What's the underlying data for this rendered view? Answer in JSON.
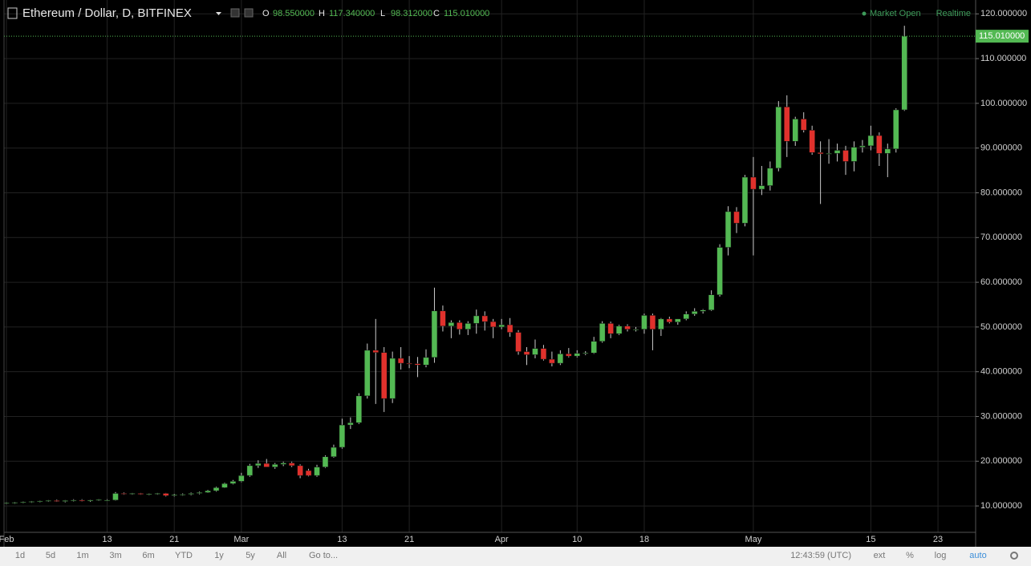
{
  "chart_data": {
    "type": "candlestick",
    "title": "Ethereum / Dollar, D, BITFINEX",
    "ohlc_header": [
      {
        "label": "O",
        "value": "98.550000"
      },
      {
        "label": "H",
        "value": "117.340000"
      },
      {
        "label": "L",
        "value": "98.312000"
      },
      {
        "label": "C",
        "value": "115.010000"
      }
    ],
    "status": "Market Open",
    "mode": "Realtime",
    "last_price": {
      "value": 115.01,
      "label": "115.010000"
    },
    "up_color": "#53b953",
    "down_color": "#e0312c",
    "grid": true,
    "ylim": [
      4.1,
      123.1
    ],
    "yticks": [
      {
        "value": 10,
        "label": "10.000000"
      },
      {
        "value": 20,
        "label": "20.000000"
      },
      {
        "value": 30,
        "label": "30.000000"
      },
      {
        "value": 40,
        "label": "40.000000"
      },
      {
        "value": 50,
        "label": "50.000000"
      },
      {
        "value": 60,
        "label": "60.000000"
      },
      {
        "value": 70,
        "label": "70.000000"
      },
      {
        "value": 80,
        "label": "80.000000"
      },
      {
        "value": 90,
        "label": "90.000000"
      },
      {
        "value": 100,
        "label": "100.000000"
      },
      {
        "value": 110,
        "label": "110.000000"
      },
      {
        "value": 120,
        "label": "120.000000"
      }
    ],
    "categories": [
      "Feb",
      null,
      null,
      null,
      null,
      null,
      null,
      null,
      null,
      null,
      null,
      null,
      "13",
      null,
      null,
      null,
      null,
      null,
      null,
      null,
      "21",
      null,
      null,
      null,
      null,
      null,
      null,
      null,
      "Mar",
      null,
      null,
      null,
      null,
      null,
      null,
      null,
      null,
      null,
      null,
      null,
      "13",
      null,
      null,
      null,
      null,
      null,
      null,
      null,
      "21",
      null,
      null,
      null,
      null,
      null,
      null,
      null,
      null,
      null,
      null,
      "Apr",
      null,
      null,
      null,
      null,
      null,
      null,
      null,
      null,
      "10",
      null,
      null,
      null,
      null,
      null,
      null,
      null,
      "18",
      null,
      null,
      null,
      null,
      null,
      null,
      null,
      null,
      null,
      null,
      null,
      null,
      "May",
      null,
      null,
      null,
      null,
      null,
      null,
      null,
      null,
      null,
      null,
      null,
      null,
      null,
      "15",
      null,
      null,
      null,
      null,
      null,
      null,
      null,
      "23",
      null,
      null,
      null,
      null
    ],
    "open": [
      10.6,
      10.7,
      10.8,
      10.9,
      11.0,
      11.1,
      11.2,
      11.0,
      11.2,
      11.3,
      11.1,
      11.3,
      11.3,
      11.3,
      12.8,
      12.7,
      12.8,
      12.6,
      12.7,
      12.8,
      12.3,
      12.5,
      12.6,
      12.8,
      13.0,
      13.4,
      14.1,
      15.0,
      15.5,
      16.8,
      19.0,
      19.5,
      18.7,
      19.3,
      19.6,
      19.0,
      17.9,
      16.8,
      18.7,
      21.0,
      23.1,
      28.1,
      28.6,
      34.6,
      44.8,
      44.3,
      34.0,
      43.0,
      41.9,
      41.8,
      41.5,
      43.2,
      53.6,
      50.2,
      51.0,
      49.5,
      50.8,
      52.5,
      51.2,
      50.0,
      50.5,
      48.8,
      44.5,
      43.8,
      45.2,
      42.8,
      41.9,
      44.0,
      43.5,
      44.1,
      44.2,
      46.8,
      50.8,
      48.5,
      50.2,
      49.5,
      49.5,
      52.6,
      49.5,
      51.8,
      51.1,
      51.8,
      52.9,
      53.5,
      53.8,
      57.2,
      67.8,
      75.8,
      73.2,
      83.5,
      80.8,
      81.6,
      85.5,
      99.2,
      91.5,
      96.5,
      94.0,
      89.0,
      88.7,
      88.8,
      89.5,
      87.0,
      90.2,
      90.5,
      92.8,
      88.8,
      89.8,
      98.55,
      null,
      null,
      null,
      null,
      null,
      null,
      null,
      null
    ],
    "high": [
      10.8,
      10.9,
      11.0,
      11.1,
      11.2,
      11.3,
      11.4,
      11.3,
      11.5,
      11.5,
      11.4,
      11.5,
      11.5,
      13.1,
      13.0,
      12.9,
      12.9,
      12.8,
      12.9,
      12.9,
      12.7,
      12.8,
      13.0,
      13.2,
      13.6,
      14.3,
      15.2,
      15.8,
      17.4,
      19.4,
      20.2,
      20.5,
      19.6,
      19.9,
      19.9,
      19.3,
      18.3,
      19.2,
      21.3,
      23.7,
      29.5,
      29.8,
      35.2,
      46.3,
      51.8,
      45.5,
      44.5,
      45.5,
      43.5,
      43.3,
      45.0,
      58.8,
      54.8,
      51.5,
      51.5,
      51.3,
      53.9,
      53.5,
      51.8,
      51.8,
      52.0,
      49.3,
      45.5,
      47.2,
      46.0,
      44.5,
      44.8,
      45.3,
      44.8,
      44.6,
      47.8,
      51.3,
      51.2,
      50.5,
      50.6,
      50.0,
      53.0,
      53.0,
      52.0,
      52.3,
      51.8,
      53.5,
      54.2,
      54.0,
      58.2,
      68.5,
      77.0,
      76.8,
      84.0,
      88.0,
      86.0,
      87.0,
      100.5,
      101.8,
      97.0,
      98.0,
      95.0,
      91.5,
      92.0,
      91.0,
      90.5,
      91.5,
      91.8,
      95.0,
      93.5,
      91.0,
      98.9,
      117.34,
      null,
      null,
      null,
      null,
      null,
      null,
      null,
      null
    ],
    "low": [
      10.4,
      10.5,
      10.6,
      10.7,
      10.8,
      10.9,
      10.9,
      10.8,
      11.0,
      11.0,
      10.9,
      11.1,
      11.1,
      11.2,
      12.5,
      12.5,
      12.5,
      12.4,
      12.5,
      12.1,
      12.1,
      12.3,
      12.4,
      12.6,
      12.9,
      13.2,
      14.0,
      14.8,
      15.3,
      16.5,
      18.5,
      18.7,
      18.3,
      18.9,
      18.7,
      16.2,
      16.6,
      16.5,
      18.5,
      20.8,
      22.8,
      27.2,
      28.3,
      34.0,
      32.8,
      31.0,
      33.0,
      40.5,
      40.8,
      38.8,
      41.0,
      42.0,
      49.0,
      47.5,
      48.3,
      48.2,
      48.5,
      49.2,
      47.5,
      49.5,
      47.8,
      43.8,
      41.5,
      43.0,
      42.5,
      41.2,
      41.5,
      43.2,
      43.2,
      43.7,
      44.0,
      46.5,
      47.5,
      48.2,
      49.0,
      49.0,
      48.5,
      44.8,
      48.0,
      50.8,
      50.5,
      51.5,
      52.5,
      53.0,
      53.6,
      56.8,
      66.0,
      71.0,
      72.5,
      66.0,
      79.5,
      80.5,
      84.8,
      88.0,
      90.5,
      93.5,
      88.5,
      77.5,
      86.5,
      87.0,
      84.0,
      84.8,
      89.0,
      89.5,
      86.0,
      83.5,
      89.0,
      98.312,
      null,
      null,
      null,
      null,
      null,
      null,
      null,
      null
    ],
    "close": [
      10.7,
      10.8,
      10.9,
      11.0,
      11.1,
      11.2,
      11.0,
      11.2,
      11.3,
      11.1,
      11.3,
      11.4,
      11.3,
      12.8,
      12.7,
      12.8,
      12.6,
      12.7,
      12.8,
      12.3,
      12.5,
      12.6,
      12.8,
      13.0,
      13.4,
      14.1,
      15.0,
      15.5,
      16.8,
      19.0,
      19.5,
      18.7,
      19.3,
      19.6,
      19.0,
      16.8,
      16.8,
      18.7,
      21.0,
      23.1,
      28.1,
      28.6,
      34.6,
      44.8,
      44.3,
      34.0,
      43.0,
      41.9,
      41.8,
      41.5,
      43.2,
      53.6,
      50.2,
      51.0,
      49.5,
      50.8,
      52.5,
      51.2,
      50.0,
      50.5,
      48.8,
      44.5,
      43.8,
      45.2,
      42.8,
      41.9,
      44.0,
      43.5,
      44.1,
      44.2,
      46.8,
      50.8,
      48.5,
      50.2,
      49.5,
      49.5,
      52.6,
      49.5,
      51.8,
      51.1,
      51.8,
      52.9,
      53.5,
      53.8,
      57.2,
      67.8,
      75.8,
      73.2,
      83.5,
      80.8,
      81.6,
      85.5,
      99.2,
      91.5,
      96.5,
      94.0,
      89.0,
      88.7,
      88.8,
      89.5,
      87.0,
      90.2,
      90.5,
      92.8,
      88.8,
      89.8,
      98.55,
      115.01,
      null,
      null,
      null,
      null,
      null,
      null,
      null,
      null
    ]
  },
  "toolbar": {
    "ranges": [
      "1d",
      "5d",
      "1m",
      "3m",
      "6m",
      "YTD",
      "1y",
      "5y",
      "All"
    ],
    "goto": "Go to...",
    "time": "12:43:59 (UTC)",
    "options": [
      "ext",
      "%",
      "log",
      "auto"
    ]
  }
}
